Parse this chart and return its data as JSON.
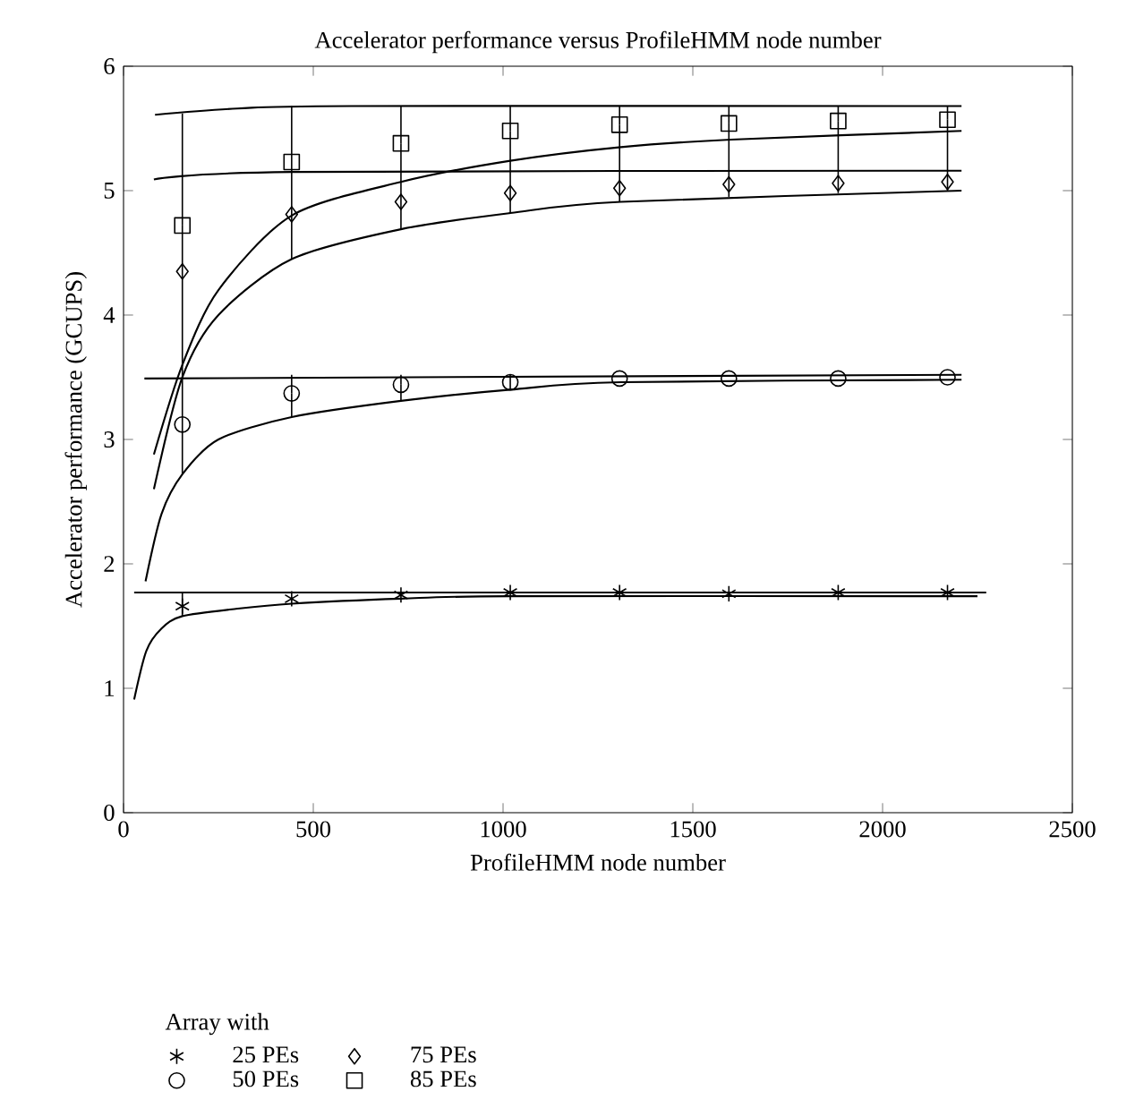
{
  "chart_data": {
    "type": "scatter",
    "title": "Accelerator performance versus ProfileHMM node number",
    "xlabel": "ProfileHMM node number",
    "ylabel": "Accelerator performance (GCUPS)",
    "legend_title": "Array with",
    "legend": "bottom",
    "xlim": [
      0,
      2500
    ],
    "ylim": [
      0,
      6
    ],
    "xticks": [
      0,
      500,
      1000,
      1500,
      2000,
      2500
    ],
    "yticks": [
      0,
      1,
      2,
      3,
      4,
      5,
      6
    ],
    "grid": false,
    "x": [
      155,
      443,
      731,
      1019,
      1307,
      1595,
      1883,
      2171
    ],
    "series": [
      {
        "name": "25 PEs",
        "color": "#000000",
        "marker": "cross",
        "values": [
          1.66,
          1.72,
          1.75,
          1.77,
          1.77,
          1.76,
          1.77,
          1.77
        ],
        "errors": [
          [
            1.58,
            1.77
          ],
          null,
          null,
          null,
          null,
          null,
          null,
          null
        ]
      },
      {
        "name": "50 PEs",
        "color": "#000000",
        "marker": "circle",
        "values": [
          3.12,
          3.37,
          3.44,
          3.46,
          3.49,
          3.49,
          3.49,
          3.5
        ],
        "errors": [
          null,
          [
            3.18,
            3.52
          ],
          [
            3.31,
            3.52
          ],
          [
            3.4,
            3.52
          ],
          null,
          null,
          null,
          null
        ]
      },
      {
        "name": "75 PEs",
        "color": "#000000",
        "marker": "diamond",
        "values": [
          4.35,
          4.81,
          4.91,
          4.98,
          5.02,
          5.05,
          5.06,
          5.07
        ],
        "errors": [
          null,
          null,
          null,
          null,
          null,
          null,
          null,
          null
        ]
      },
      {
        "name": "85 PEs",
        "color": "#000000",
        "marker": "square",
        "values": [
          4.72,
          5.23,
          5.38,
          5.48,
          5.53,
          5.54,
          5.56,
          5.57
        ],
        "errors": [
          [
            2.72,
            5.62
          ],
          [
            4.45,
            5.68
          ],
          [
            4.69,
            5.68
          ],
          [
            4.82,
            5.68
          ],
          [
            4.91,
            5.68
          ],
          [
            4.95,
            5.68
          ],
          [
            4.98,
            5.68
          ],
          [
            5.0,
            5.68
          ]
        ]
      },
      {
        "type": "line",
        "color": "#000000",
        "x": [
          28,
          60,
          100,
          155,
          300,
          443,
          731,
          1019,
          2250
        ],
        "values": [
          0.91,
          1.3,
          1.48,
          1.58,
          1.64,
          1.68,
          1.72,
          1.74,
          1.74
        ]
      },
      {
        "type": "line",
        "color": "#000000",
        "x": [
          28,
          2273
        ],
        "values": [
          1.77,
          1.77
        ]
      },
      {
        "type": "line",
        "color": "#000000",
        "x": [
          58,
          100,
          155,
          250,
          443,
          731,
          1019,
          1311,
          2208
        ],
        "values": [
          1.86,
          2.4,
          2.72,
          3.0,
          3.18,
          3.31,
          3.4,
          3.46,
          3.48
        ]
      },
      {
        "type": "line",
        "color": "#000000",
        "x": [
          55,
          2208
        ],
        "values": [
          3.49,
          3.52
        ]
      },
      {
        "type": "line",
        "color": "#000000",
        "x": [
          80,
          155,
          250,
          443,
          731,
          1019,
          1311,
          2208
        ],
        "values": [
          2.6,
          3.5,
          4.0,
          4.45,
          4.69,
          4.82,
          4.91,
          5.0
        ]
      },
      {
        "type": "line",
        "color": "#000000",
        "x": [
          80,
          443,
          2208
        ],
        "values": [
          5.09,
          5.15,
          5.16
        ]
      },
      {
        "type": "line",
        "color": "#000000",
        "x": [
          80,
          155,
          250,
          443,
          731,
          1019,
          1311,
          1600,
          2208
        ],
        "values": [
          2.88,
          3.6,
          4.2,
          4.8,
          5.07,
          5.24,
          5.35,
          5.41,
          5.48
        ]
      },
      {
        "type": "line",
        "color": "#000000",
        "x": [
          83,
          300,
          600,
          2208
        ],
        "values": [
          5.61,
          5.66,
          5.68,
          5.68
        ]
      }
    ]
  }
}
